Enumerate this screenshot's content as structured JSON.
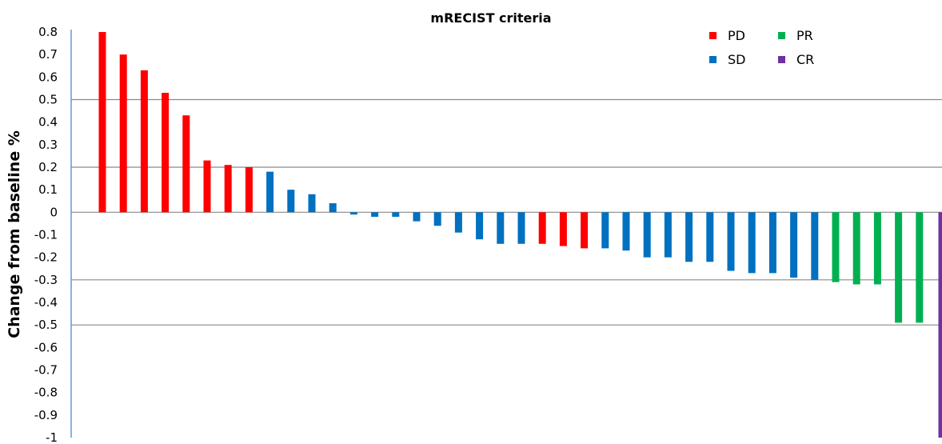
{
  "chart_data": {
    "type": "bar",
    "title": "mRECIST criteria",
    "xlabel": "",
    "ylabel": "Change from baseline %",
    "ylim": [
      -1,
      0.8
    ],
    "yticks": [
      "0.8",
      "0.7",
      "0.6",
      "0.5",
      "0.4",
      "0.3",
      "0.2",
      "0.1",
      "0",
      "-0.1",
      "-0.2",
      "-0.3",
      "-0.4",
      "-0.5",
      "-0.6",
      "-0.7",
      "-0.8",
      "-0.9",
      "-1"
    ],
    "reference_lines": [
      0.5,
      0.2,
      0,
      -0.3,
      -0.5
    ],
    "legend": {
      "placement": "top-right",
      "entries": [
        {
          "label": "PD",
          "color": "#ff0000"
        },
        {
          "label": "PR",
          "color": "#00b050"
        },
        {
          "label": "SD",
          "color": "#0070c0"
        },
        {
          "label": "CR",
          "color": "#7030a0"
        }
      ]
    },
    "categories_colors": {
      "PD": "#ff0000",
      "SD": "#0070c0",
      "PR": "#00b050",
      "CR": "#7030a0"
    },
    "bars": [
      {
        "value": 0.8,
        "category": "PD"
      },
      {
        "value": 0.7,
        "category": "PD"
      },
      {
        "value": 0.63,
        "category": "PD"
      },
      {
        "value": 0.53,
        "category": "PD"
      },
      {
        "value": 0.43,
        "category": "PD"
      },
      {
        "value": 0.23,
        "category": "PD"
      },
      {
        "value": 0.21,
        "category": "PD"
      },
      {
        "value": 0.2,
        "category": "PD"
      },
      {
        "value": 0.18,
        "category": "SD"
      },
      {
        "value": 0.1,
        "category": "SD"
      },
      {
        "value": 0.08,
        "category": "SD"
      },
      {
        "value": 0.04,
        "category": "SD"
      },
      {
        "value": -0.01,
        "category": "SD"
      },
      {
        "value": -0.02,
        "category": "SD"
      },
      {
        "value": -0.02,
        "category": "SD"
      },
      {
        "value": -0.04,
        "category": "SD"
      },
      {
        "value": -0.06,
        "category": "SD"
      },
      {
        "value": -0.09,
        "category": "SD"
      },
      {
        "value": -0.12,
        "category": "SD"
      },
      {
        "value": -0.14,
        "category": "SD"
      },
      {
        "value": -0.14,
        "category": "SD"
      },
      {
        "value": -0.14,
        "category": "PD"
      },
      {
        "value": -0.15,
        "category": "PD"
      },
      {
        "value": -0.16,
        "category": "PD"
      },
      {
        "value": -0.16,
        "category": "SD"
      },
      {
        "value": -0.17,
        "category": "SD"
      },
      {
        "value": -0.2,
        "category": "SD"
      },
      {
        "value": -0.2,
        "category": "SD"
      },
      {
        "value": -0.22,
        "category": "SD"
      },
      {
        "value": -0.22,
        "category": "SD"
      },
      {
        "value": -0.26,
        "category": "SD"
      },
      {
        "value": -0.27,
        "category": "SD"
      },
      {
        "value": -0.27,
        "category": "SD"
      },
      {
        "value": -0.29,
        "category": "SD"
      },
      {
        "value": -0.3,
        "category": "SD"
      },
      {
        "value": -0.31,
        "category": "PR"
      },
      {
        "value": -0.32,
        "category": "PR"
      },
      {
        "value": -0.32,
        "category": "PR"
      },
      {
        "value": -0.49,
        "category": "PR"
      },
      {
        "value": -0.49,
        "category": "PR"
      },
      {
        "value": -1.0,
        "category": "CR"
      }
    ]
  }
}
